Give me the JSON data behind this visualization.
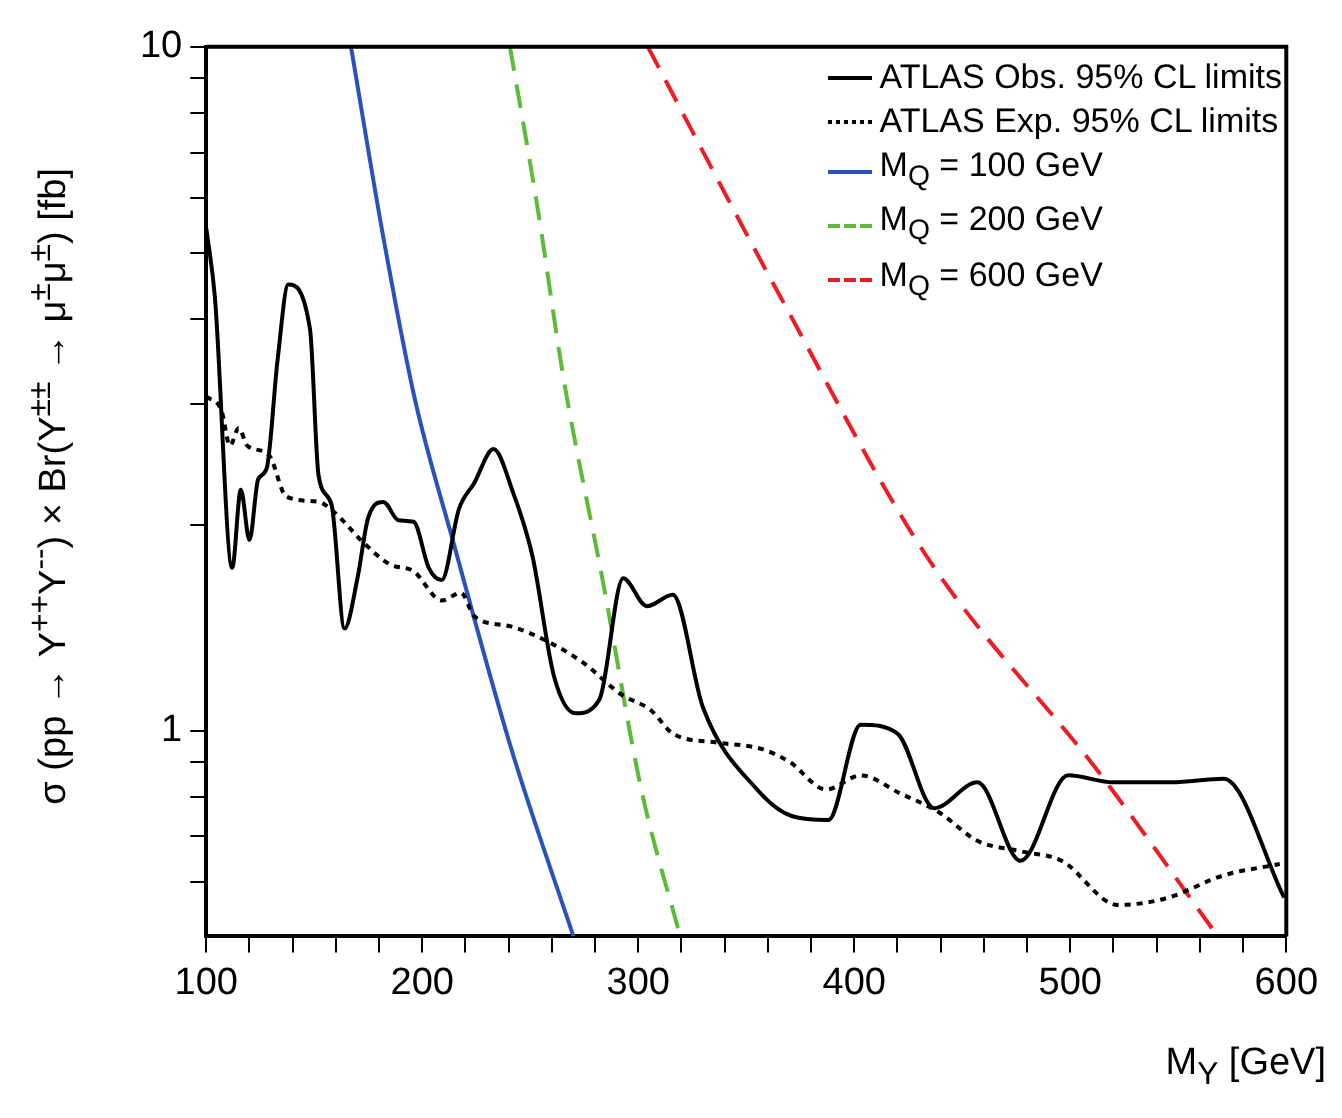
{
  "chart_data": {
    "type": "line",
    "xlabel": "M$_{Y}$ [GeV]",
    "ylabel": "σ (pp → Y$^{++}$Y$^{--}$) × Br(Y$^{±±}$ → μ$^{±}$μ$^{±}$) [fb]",
    "log": "y",
    "legend": "top right",
    "grid": false,
    "marker": "none",
    "xlim": [
      100,
      600
    ],
    "ylim": [
      0.5,
      10
    ],
    "xticks": [
      100,
      {
        "value": 120,
        "label": null
      },
      {
        "value": 140,
        "label": null
      },
      {
        "value": 160,
        "label": null
      },
      {
        "value": 180,
        "label": null
      },
      200,
      {
        "value": 220,
        "label": null
      },
      {
        "value": 240,
        "label": null
      },
      {
        "value": 260,
        "label": null
      },
      {
        "value": 280,
        "label": null
      },
      300,
      {
        "value": 320,
        "label": null
      },
      {
        "value": 340,
        "label": null
      },
      {
        "value": 360,
        "label": null
      },
      {
        "value": 380,
        "label": null
      },
      400,
      {
        "value": 420,
        "label": null
      },
      {
        "value": 440,
        "label": null
      },
      {
        "value": 460,
        "label": null
      },
      {
        "value": 480,
        "label": null
      },
      500,
      {
        "value": 520,
        "label": null
      },
      {
        "value": 540,
        "label": null
      },
      {
        "value": 560,
        "label": null
      },
      {
        "value": 580,
        "label": null
      },
      600
    ],
    "yticks": [
      {
        "value": 0.6,
        "label": null
      },
      {
        "value": 0.7,
        "label": null
      },
      {
        "value": 0.8,
        "label": null
      },
      {
        "value": 0.9,
        "label": null
      },
      1,
      {
        "value": 2,
        "label": null
      },
      {
        "value": 3,
        "label": null
      },
      {
        "value": 4,
        "label": null
      },
      {
        "value": 5,
        "label": null
      },
      {
        "value": 6,
        "label": null
      },
      {
        "value": 7,
        "label": null
      },
      {
        "value": 8,
        "label": null
      },
      {
        "value": 9,
        "label": null
      },
      10
    ],
    "series": [
      {
        "name": "ATLAS Obs. 95% CL limits",
        "color": "#000000",
        "line_style": "solid",
        "x": [
          100,
          104,
          112,
          116,
          120,
          124,
          128,
          133,
          138,
          148,
          152,
          158,
          164,
          170,
          175,
          182,
          189,
          196,
          203,
          209,
          217,
          224,
          233,
          242,
          251,
          261,
          271,
          282,
          293,
          304,
          316,
          330,
          355,
          371,
          388,
          403,
          420,
          437,
          457,
          477,
          499,
          520,
          547,
          571,
          599
        ],
        "values": [
          5.43,
          4.3,
          1.73,
          2.25,
          1.9,
          2.33,
          2.42,
          3.48,
          4.49,
          3.87,
          2.36,
          2.14,
          1.41,
          1.67,
          2.05,
          2.16,
          2.03,
          2.02,
          1.73,
          1.66,
          2.11,
          2.3,
          2.58,
          2.23,
          1.8,
          1.2,
          1.06,
          1.11,
          1.67,
          1.52,
          1.58,
          1.08,
          0.82,
          0.75,
          0.74,
          1.02,
          0.99,
          0.77,
          0.84,
          0.645,
          0.86,
          0.84,
          0.84,
          0.85,
          0.57
        ]
      },
      {
        "name": "ATLAS Exp. 95% CL limits",
        "color": "#000000",
        "line_style": "dotted",
        "x": [
          100,
          107,
          111,
          115,
          119,
          129,
          137,
          152,
          159,
          173,
          185,
          196,
          209,
          218,
          224,
          241,
          258,
          274,
          292,
          306,
          316,
          337,
          357,
          370,
          387,
          403,
          421,
          439,
          457,
          477,
          496,
          522,
          544,
          571,
          597
        ],
        "values": [
          3.08,
          2.94,
          2.61,
          2.77,
          2.61,
          2.53,
          2.2,
          2.16,
          2.09,
          1.88,
          1.75,
          1.71,
          1.55,
          1.59,
          1.47,
          1.42,
          1.35,
          1.26,
          1.13,
          1.07,
          0.99,
          0.96,
          0.94,
          0.9,
          0.82,
          0.86,
          0.81,
          0.76,
          0.69,
          0.666,
          0.645,
          0.556,
          0.568,
          0.614,
          0.638
        ]
      },
      {
        "name": "M$_{Q}$ = 100 GeV",
        "color": "#2a52be",
        "line_style": "solid",
        "x": [
          167,
          182,
          196.5,
          214.5,
          241.5,
          270
        ],
        "values": [
          10,
          5.26,
          3.06,
          1.88,
          0.934,
          0.5
        ]
      },
      {
        "name": "M$_{Q}$ = 200 GeV",
        "color": "#5dbb3a",
        "line_style": "dashed",
        "x": [
          240.6,
          253.5,
          265.5,
          283.5,
          301.4,
          319.4
        ],
        "values": [
          10,
          5.78,
          3.26,
          1.66,
          0.82,
          0.5
        ]
      },
      {
        "name": "M$_{Q}$ = 600 GeV",
        "color": "#ee1c24",
        "line_style": "dashed",
        "x": [
          304.4,
          364.4,
          433.4,
          514.3,
          568.3
        ],
        "values": [
          10,
          4.39,
          1.8,
          0.86,
          0.5
        ]
      }
    ]
  }
}
